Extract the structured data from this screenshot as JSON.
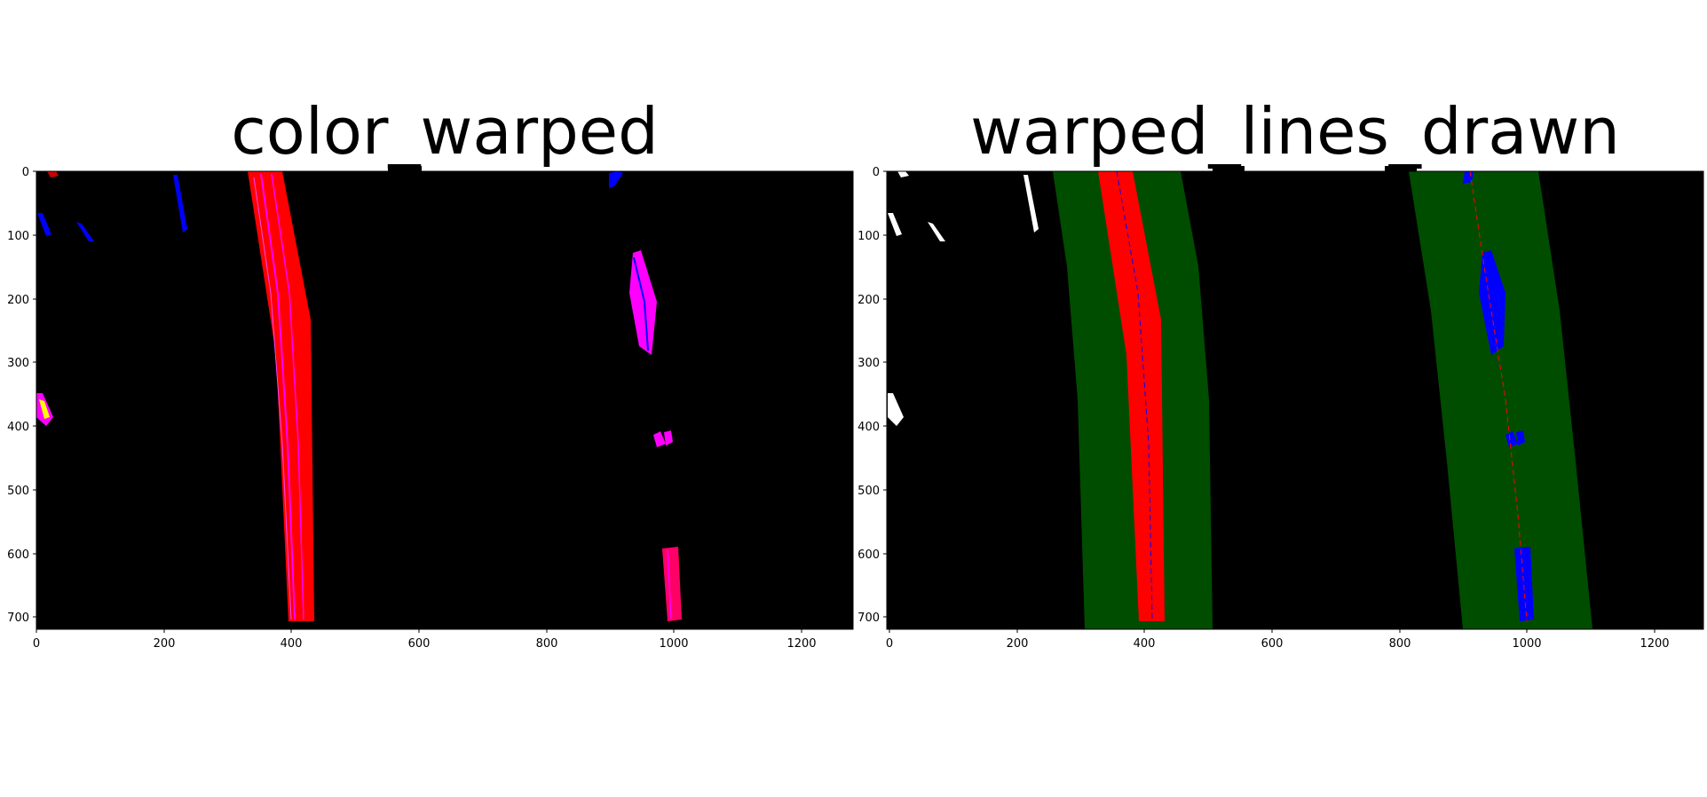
{
  "panels": [
    {
      "title": "color_warped",
      "x_ticks": [
        "0",
        "200",
        "400",
        "600",
        "800",
        "1000",
        "1200"
      ],
      "y_ticks": [
        "0",
        "100",
        "200",
        "300",
        "400",
        "500",
        "600",
        "700"
      ]
    },
    {
      "title": "warped_lines_drawn",
      "x_ticks": [
        "0",
        "200",
        "400",
        "600",
        "800",
        "1000",
        "1200"
      ],
      "y_ticks": [
        "0",
        "100",
        "200",
        "300",
        "400",
        "500",
        "600",
        "700"
      ]
    }
  ],
  "image_extent": {
    "x": [
      0,
      1280
    ],
    "y": [
      720,
      0
    ]
  },
  "colors": {
    "background": "#000000",
    "lane_red": "#ff0000",
    "lane_blue": "#0000ff",
    "lane_magenta": "#ff00ff",
    "lane_window": "#004d00",
    "noise_white": "#ffffff"
  }
}
